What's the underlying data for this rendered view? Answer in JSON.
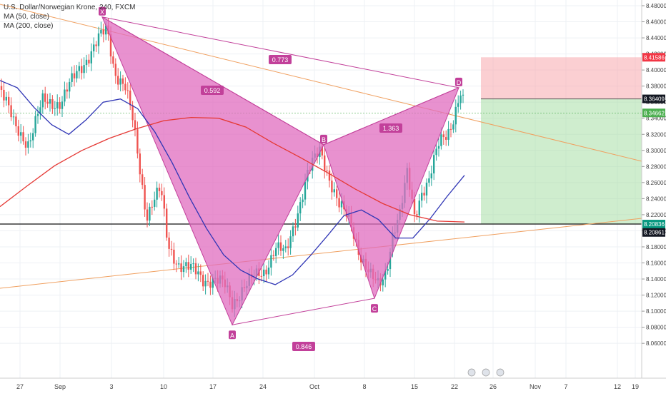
{
  "legend": {
    "symbol_line": "U.S. Dollar/Norwegian Krone, 240, FXCM",
    "ma1": "MA (50, close)",
    "ma2": "MA (200, close)"
  },
  "chart_data": {
    "type": "candlestick",
    "title": "U.S. Dollar/Norwegian Krone, 240, FXCM",
    "ylim": [
      8.05,
      8.49
    ],
    "y_ticks": [
      "8.48000",
      "8.46000",
      "8.44000",
      "8.42000",
      "8.40000",
      "8.38000",
      "8.36000",
      "8.34000",
      "8.32000",
      "8.30000",
      "8.28000",
      "8.26000",
      "8.24000",
      "8.22000",
      "8.20000",
      "8.18000",
      "8.16000",
      "8.14000",
      "8.12000",
      "8.10000",
      "8.08000",
      "8.06000"
    ],
    "x_ticks": [
      "27",
      "Sep",
      "3",
      "10",
      "17",
      "24",
      "Oct",
      "8",
      "15",
      "22",
      "26",
      "Nov",
      "7",
      "12",
      "19"
    ],
    "price_labels": [
      {
        "value": 8.41586,
        "text": "8.41586",
        "color": "#f23645"
      },
      {
        "value": 8.36409,
        "text": "8.36409",
        "color": "#131722"
      },
      {
        "value": 8.34662,
        "text": "8.34662",
        "color": "#4caf50"
      },
      {
        "value": 8.20836,
        "text": "8.20836",
        "color": "#089981"
      },
      {
        "value": 8.20861,
        "text": "8.20861",
        "color": "#131722"
      }
    ],
    "pattern": {
      "points": [
        {
          "label": "X",
          "value": 8.466
        },
        {
          "label": "A",
          "value": 8.083
        },
        {
          "label": "B",
          "value": 8.307
        },
        {
          "label": "C",
          "value": 8.116
        },
        {
          "label": "D",
          "value": 8.378
        }
      ],
      "ratios": [
        "0.773",
        "0.592",
        "1.363",
        "0.846"
      ],
      "fill": "#e06cbf",
      "stroke": "#c2409a"
    },
    "position": {
      "stop": 8.41586,
      "entry": 8.36409,
      "target": 8.20836
    },
    "series": [
      {
        "name": "MA (50, close)",
        "color": "#2f35b5",
        "values": [
          8.387,
          8.378,
          8.353,
          8.332,
          8.32,
          8.338,
          8.36,
          8.364,
          8.352,
          8.323,
          8.285,
          8.242,
          8.203,
          8.17,
          8.151,
          8.14,
          8.133,
          8.145,
          8.168,
          8.193,
          8.219,
          8.226,
          8.214,
          8.191,
          8.191,
          8.215,
          8.243,
          8.269
        ]
      },
      {
        "name": "MA (200, close)",
        "color": "#e53935",
        "values": [
          8.23,
          8.256,
          8.281,
          8.3,
          8.315,
          8.327,
          8.337,
          8.341,
          8.34,
          8.329,
          8.309,
          8.291,
          8.272,
          8.252,
          8.234,
          8.22,
          8.212,
          8.211
        ]
      }
    ]
  }
}
